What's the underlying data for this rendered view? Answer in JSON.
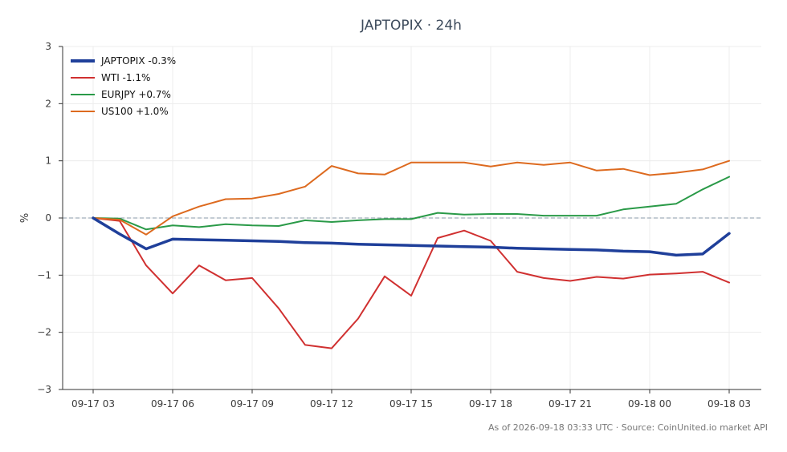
{
  "chart_data": {
    "type": "line",
    "title": "JAPTOPIX · 24h",
    "ylabel": "%",
    "xlabel": "",
    "ylim": [
      -3,
      3
    ],
    "yticks": [
      -3,
      -2,
      -1,
      0,
      1,
      2,
      3
    ],
    "ytick_labels": [
      "−3",
      "−2",
      "−1",
      "0",
      "1",
      "2",
      "3"
    ],
    "x": [
      "09-17 03",
      "09-17 04",
      "09-17 05",
      "09-17 06",
      "09-17 07",
      "09-17 08",
      "09-17 09",
      "09-17 10",
      "09-17 11",
      "09-17 12",
      "09-17 13",
      "09-17 14",
      "09-17 15",
      "09-17 16",
      "09-17 17",
      "09-17 18",
      "09-17 19",
      "09-17 20",
      "09-17 21",
      "09-17 22",
      "09-17 23",
      "09-18 00",
      "09-18 01",
      "09-18 02",
      "09-18 03"
    ],
    "xticks": [
      "09-17 03",
      "09-17 06",
      "09-17 09",
      "09-17 12",
      "09-17 15",
      "09-17 18",
      "09-17 21",
      "09-18 00",
      "09-18 03"
    ],
    "grid": true,
    "zero_line": true,
    "legend_position": "top-left",
    "series": [
      {
        "name": "JAPTOPIX -0.3%",
        "color": "#1f3f9a",
        "emphasis": true,
        "values": [
          0.0,
          -0.28,
          -0.54,
          -0.37,
          -0.38,
          -0.39,
          -0.4,
          -0.41,
          -0.43,
          -0.44,
          -0.46,
          -0.47,
          -0.48,
          -0.49,
          -0.5,
          -0.51,
          -0.53,
          -0.54,
          -0.55,
          -0.56,
          -0.58,
          -0.59,
          -0.65,
          -0.63,
          -0.27
        ]
      },
      {
        "name": "WTI -1.1%",
        "color": "#d03030",
        "values": [
          0.0,
          -0.05,
          -0.83,
          -1.32,
          -0.83,
          -1.09,
          -1.05,
          -1.58,
          -2.22,
          -2.28,
          -1.76,
          -1.02,
          -1.36,
          -0.35,
          -0.22,
          -0.4,
          -0.94,
          -1.05,
          -1.1,
          -1.03,
          -1.06,
          -0.99,
          -0.97,
          -0.94,
          -1.13
        ]
      },
      {
        "name": "EURJPY +0.7%",
        "color": "#2a9a48",
        "values": [
          0.0,
          -0.01,
          -0.2,
          -0.13,
          -0.16,
          -0.11,
          -0.13,
          -0.14,
          -0.04,
          -0.07,
          -0.04,
          -0.02,
          -0.02,
          0.09,
          0.06,
          0.07,
          0.07,
          0.04,
          0.04,
          0.04,
          0.15,
          0.2,
          0.25,
          0.5,
          0.72
        ]
      },
      {
        "name": "US100 +1.0%",
        "color": "#dd6a1f",
        "values": [
          0.0,
          -0.03,
          -0.29,
          0.03,
          0.2,
          0.33,
          0.34,
          0.42,
          0.55,
          0.91,
          0.78,
          0.76,
          0.97,
          0.97,
          0.97,
          0.9,
          0.97,
          0.93,
          0.97,
          0.83,
          0.86,
          0.75,
          0.79,
          0.85,
          1.0
        ]
      }
    ]
  },
  "footer": "As of 2026-09-18 03:33 UTC · Source: CoinUnited.io market API"
}
